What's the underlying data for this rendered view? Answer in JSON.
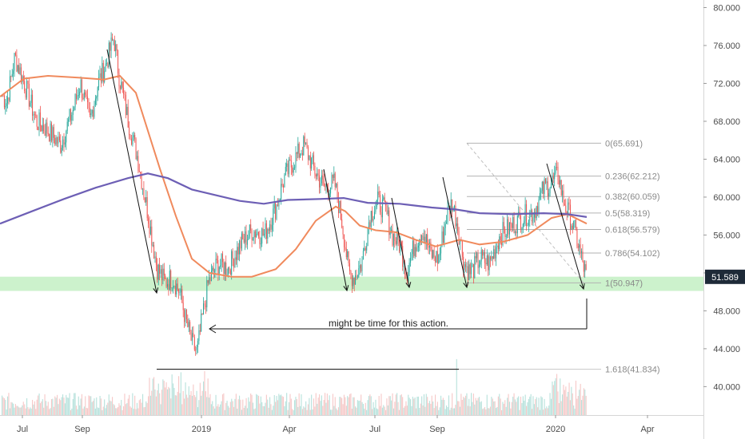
{
  "chart_data": {
    "type": "candlestick",
    "y_axis": {
      "ticks": [
        "80.000",
        "76.000",
        "72.000",
        "68.000",
        "64.000",
        "60.000",
        "56.000",
        "52.000",
        "48.000",
        "44.000",
        "40.000"
      ],
      "range": [
        37.0,
        80.8
      ]
    },
    "x_axis": {
      "ticks": [
        "Jul",
        "Sep",
        "2019",
        "Apr",
        "Jul",
        "Sep",
        "2020",
        "Apr"
      ]
    },
    "last_price": "51.589",
    "last_price_value": 51.589,
    "support_zone": [
      50.1,
      51.6
    ],
    "fibonacci": [
      {
        "label": "0(65.691)",
        "value": 65.691
      },
      {
        "label": "0.236(62.212)",
        "value": 62.212
      },
      {
        "label": "0.382(60.059)",
        "value": 60.059
      },
      {
        "label": "0.5(58.319)",
        "value": 58.319
      },
      {
        "label": "0.618(56.579)",
        "value": 56.579
      },
      {
        "label": "0.786(54.102)",
        "value": 54.102
      },
      {
        "label": "1(50.947)",
        "value": 50.947
      },
      {
        "label": "1.618(41.834)",
        "value": 41.834
      }
    ],
    "annotation": "might be time for this action.",
    "colors": {
      "up": "#26a69a",
      "down": "#ef5350",
      "ma_fast": "#f08a5d",
      "ma_slow": "#6d5fb5",
      "support": "#ccf2cc",
      "fib": "#b2b2b2",
      "price_tag": "#1e2a38"
    }
  }
}
